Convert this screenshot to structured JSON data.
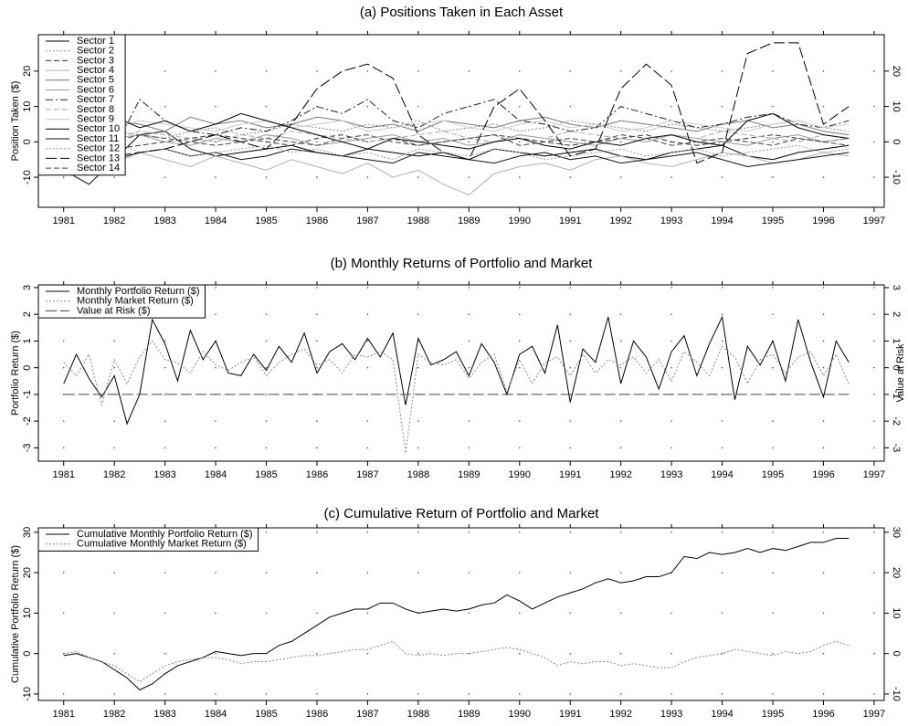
{
  "chart_data": [
    {
      "type": "line",
      "title": "(a) Positions Taken in Each Asset",
      "ylabel": "Position Taken ($)",
      "xlim": [
        1980.5,
        1997.2
      ],
      "xticks": [
        1981,
        1982,
        1983,
        1984,
        1985,
        1986,
        1987,
        1988,
        1989,
        1990,
        1991,
        1992,
        1993,
        1994,
        1995,
        1996,
        1997
      ],
      "ylim": [
        -18.5,
        30.3
      ],
      "yticks": [
        -10,
        0,
        10,
        20
      ],
      "grid": true,
      "legend": "upper left",
      "x": [
        1981,
        1981.5,
        1982,
        1982.5,
        1983,
        1983.5,
        1984,
        1984.5,
        1985,
        1985.5,
        1986,
        1986.5,
        1987,
        1987.5,
        1988,
        1988.5,
        1989,
        1989.5,
        1990,
        1990.5,
        1991,
        1991.5,
        1992,
        1992.5,
        1993,
        1993.5,
        1994,
        1994.5,
        1995,
        1995.5,
        1996,
        1996.5
      ],
      "series": [
        {
          "name": "Sector 1",
          "color": "#000000",
          "linestyle": "solid",
          "values": [
            0,
            -3,
            -5,
            2,
            3,
            -2,
            -4,
            -3,
            -2,
            -1,
            -3,
            -4,
            -2,
            -3,
            -4,
            -3,
            -5,
            -2,
            -3,
            -4,
            -3,
            -2,
            -4,
            -5,
            -3,
            -2,
            -1,
            -4,
            -5,
            -3,
            -2,
            -1
          ]
        },
        {
          "name": "Sector 2",
          "color": "#888888",
          "linestyle": "dotted",
          "values": [
            1,
            2,
            3,
            2,
            1,
            3,
            4,
            2,
            3,
            5,
            4,
            3,
            5,
            4,
            6,
            3,
            4,
            5,
            3,
            4,
            6,
            5,
            4,
            3,
            5,
            4,
            3,
            4,
            5,
            6,
            4,
            3
          ]
        },
        {
          "name": "Sector 3",
          "color": "#333333",
          "linestyle": "dashed",
          "values": [
            0,
            1,
            -2,
            -1,
            0,
            1,
            2,
            1,
            0,
            -1,
            1,
            2,
            0,
            1,
            -1,
            0,
            1,
            2,
            1,
            0,
            -1,
            0,
            1,
            2,
            0,
            -1,
            0,
            1,
            2,
            1,
            0,
            1
          ]
        },
        {
          "name": "Sector 4",
          "color": "#b0b0b0",
          "linestyle": "solid",
          "values": [
            -2,
            -4,
            -6,
            -3,
            -5,
            -7,
            -4,
            -6,
            -8,
            -5,
            -7,
            -9,
            -6,
            -10,
            -8,
            -12,
            -15,
            -9,
            -7,
            -6,
            -8,
            -5,
            -4,
            -6,
            -7,
            -5,
            -3,
            -4,
            -6,
            -5,
            -3,
            -4
          ]
        },
        {
          "name": "Sector 5",
          "color": "#777777",
          "linestyle": "solid",
          "values": [
            2,
            4,
            6,
            5,
            3,
            7,
            5,
            6,
            4,
            5,
            7,
            6,
            4,
            5,
            3,
            6,
            5,
            4,
            6,
            7,
            5,
            4,
            6,
            5,
            4,
            3,
            5,
            6,
            4,
            5,
            3,
            2
          ]
        },
        {
          "name": "Sector 6",
          "color": "#999999",
          "linestyle": "solid",
          "values": [
            0,
            -1,
            1,
            2,
            0,
            -1,
            1,
            0,
            2,
            1,
            -1,
            0,
            1,
            2,
            0,
            1,
            -1,
            0,
            2,
            1,
            0,
            -1,
            1,
            0,
            2,
            1,
            0,
            -1,
            1,
            2,
            0,
            1
          ]
        },
        {
          "name": "Sector 7",
          "color": "#222222",
          "linestyle": "dashdot",
          "values": [
            1,
            3,
            -2,
            12,
            6,
            3,
            2,
            4,
            3,
            6,
            10,
            8,
            12,
            6,
            4,
            8,
            10,
            12,
            6,
            5,
            3,
            4,
            10,
            8,
            6,
            4,
            5,
            7,
            8,
            5,
            4,
            6
          ]
        },
        {
          "name": "Sector 8",
          "color": "#aaaaaa",
          "linestyle": "dashed",
          "values": [
            0,
            2,
            1,
            3,
            2,
            1,
            0,
            2,
            1,
            3,
            2,
            1,
            0,
            1,
            2,
            3,
            1,
            0,
            2,
            1,
            3,
            2,
            1,
            0,
            2,
            1,
            3,
            2,
            1,
            0,
            2,
            1
          ]
        },
        {
          "name": "Sector 9",
          "color": "#cccccc",
          "linestyle": "solid",
          "values": [
            5,
            3,
            4,
            6,
            5,
            4,
            3,
            5,
            6,
            4,
            5,
            6,
            3,
            4,
            5,
            6,
            4,
            3,
            5,
            6,
            4,
            5,
            3,
            4,
            6,
            5,
            4,
            3,
            5,
            6,
            4,
            5
          ]
        },
        {
          "name": "Sector 10",
          "color": "#000000",
          "linestyle": "solid",
          "values": [
            3,
            5,
            7,
            4,
            6,
            3,
            5,
            8,
            6,
            4,
            2,
            0,
            -2,
            1,
            0,
            -1,
            -2,
            0,
            1,
            -1,
            -2,
            0,
            -1,
            1,
            2,
            0,
            -1,
            6,
            8,
            4,
            2,
            1
          ]
        },
        {
          "name": "Sector 11",
          "color": "#111111",
          "linestyle": "solid",
          "values": [
            -8,
            -12,
            -5,
            -3,
            -2,
            -4,
            -3,
            -5,
            -4,
            -2,
            -3,
            -4,
            -5,
            -6,
            -3,
            -4,
            -5,
            -6,
            -4,
            -3,
            -5,
            -4,
            -6,
            -5,
            -4,
            -3,
            -5,
            -7,
            -6,
            -5,
            -4,
            -3
          ]
        },
        {
          "name": "Sector 12",
          "color": "#999999",
          "linestyle": "dotted",
          "values": [
            -1,
            -2,
            0,
            -3,
            -2,
            -4,
            -3,
            -2,
            -1,
            -3,
            -2,
            -4,
            -3,
            -5,
            -2,
            -3,
            -4,
            -2,
            -3,
            -5,
            -4,
            -3,
            -2,
            -4,
            -3,
            -2,
            -4,
            -3,
            -2,
            -1,
            -3,
            -2
          ]
        },
        {
          "name": "Sector 13",
          "color": "#000000",
          "linestyle": "longdash",
          "values": [
            0,
            -2,
            -4,
            -3,
            -2,
            0,
            2,
            0,
            -2,
            5,
            15,
            20,
            22,
            18,
            2,
            -3,
            -5,
            10,
            15,
            6,
            -4,
            -2,
            15,
            22,
            16,
            -6,
            -3,
            25,
            28,
            28,
            5,
            10
          ]
        },
        {
          "name": "Sector 14",
          "color": "#444444",
          "linestyle": "dashed",
          "values": [
            0,
            1,
            0,
            2,
            1,
            0,
            -1,
            0,
            1,
            0,
            -1,
            1,
            2,
            0,
            -1,
            0,
            1,
            2,
            -1,
            0,
            1,
            0,
            2,
            1,
            -1,
            0,
            1,
            0,
            -1,
            1,
            0,
            -1
          ]
        }
      ]
    },
    {
      "type": "line",
      "title": "(b) Monthly Returns of Portfolio and Market",
      "ylabel": "Portfolio Return ($)",
      "y2label": "Value at Risk",
      "xlim": [
        1980.5,
        1997.2
      ],
      "xticks": [
        1981,
        1982,
        1983,
        1984,
        1985,
        1986,
        1987,
        1988,
        1989,
        1990,
        1991,
        1992,
        1993,
        1994,
        1995,
        1996,
        1997
      ],
      "ylim": [
        -3.5,
        3.1
      ],
      "yticks": [
        -3,
        -2,
        -1,
        0,
        1,
        2,
        3
      ],
      "grid": true,
      "legend": "upper left",
      "x": [
        1981,
        1981.25,
        1981.5,
        1981.75,
        1982,
        1982.25,
        1982.5,
        1982.75,
        1983,
        1983.25,
        1983.5,
        1983.75,
        1984,
        1984.25,
        1984.5,
        1984.75,
        1985,
        1985.25,
        1985.5,
        1985.75,
        1986,
        1986.25,
        1986.5,
        1986.75,
        1987,
        1987.25,
        1987.5,
        1987.75,
        1988,
        1988.25,
        1988.5,
        1988.75,
        1989,
        1989.25,
        1989.5,
        1989.75,
        1990,
        1990.25,
        1990.5,
        1990.75,
        1991,
        1991.25,
        1991.5,
        1991.75,
        1992,
        1992.25,
        1992.5,
        1992.75,
        1993,
        1993.25,
        1993.5,
        1993.75,
        1994,
        1994.25,
        1994.5,
        1994.75,
        1995,
        1995.25,
        1995.5,
        1995.75,
        1996,
        1996.25,
        1996.5
      ],
      "series": [
        {
          "name": "Monthly Portfolio Return ($)",
          "color": "#000000",
          "linestyle": "solid",
          "values": [
            -0.6,
            0.5,
            -0.4,
            -1.1,
            -0.3,
            -2.1,
            -1.0,
            1.8,
            0.9,
            -0.5,
            1.4,
            0.3,
            1.0,
            -0.2,
            -0.3,
            0.5,
            -0.1,
            0.8,
            0.2,
            1.3,
            -0.2,
            0.6,
            0.9,
            0.3,
            1.1,
            0.4,
            1.3,
            -1.4,
            1.1,
            0.1,
            0.3,
            0.6,
            -0.3,
            0.9,
            0.2,
            -1.0,
            0.5,
            0.8,
            -0.2,
            1.6,
            -1.3,
            0.7,
            0.2,
            1.9,
            -0.6,
            1.0,
            0.4,
            -0.8,
            0.6,
            1.2,
            -0.3,
            0.9,
            1.9,
            -1.2,
            0.8,
            0.1,
            1.0,
            -0.5,
            1.8,
            0.2,
            -1.1,
            1.0,
            0.2
          ]
        },
        {
          "name": "Monthly Market Return ($)",
          "color": "#888888",
          "linestyle": "dotted",
          "values": [
            0.2,
            -0.3,
            0.5,
            -1.4,
            0.3,
            -0.6,
            0.4,
            1.0,
            0.3,
            0.2,
            -0.2,
            0.6,
            0.1,
            -0.1,
            0.2,
            0.4,
            -0.3,
            0.2,
            0.5,
            0.7,
            0.1,
            0.3,
            -0.2,
            0.5,
            0.4,
            0.6,
            0.3,
            -3.2,
            0.5,
            0.2,
            0.1,
            0.3,
            -0.4,
            0.2,
            0.5,
            -0.9,
            0.3,
            -0.6,
            0.2,
            0.4,
            -0.3,
            0.5,
            -0.2,
            0.3,
            0.1,
            0.4,
            -0.2,
            0.3,
            -0.5,
            0.6,
            0.2,
            -0.3,
            0.8,
            0.4,
            -0.6,
            0.3,
            0.5,
            -0.2,
            0.4,
            0.6,
            -0.3,
            0.5,
            -0.6
          ]
        },
        {
          "name": "Value at Risk ($)",
          "color": "#444444",
          "linestyle": "longdash",
          "axis": "y2",
          "values": [
            -1,
            -1,
            -1,
            -1,
            -1,
            -1,
            -1,
            -1,
            -1,
            -1,
            -1,
            -1,
            -1,
            -1,
            -1,
            -1,
            -1,
            -1,
            -1,
            -1,
            -1,
            -1,
            -1,
            -1,
            -1,
            -1,
            -1,
            -1,
            -1,
            -1,
            -1,
            -1,
            -1,
            -1,
            -1,
            -1,
            -1,
            -1,
            -1,
            -1,
            -1,
            -1,
            -1,
            -1,
            -1,
            -1,
            -1,
            -1,
            -1,
            -1,
            -1,
            -1,
            -1,
            -1,
            -1,
            -1,
            -1,
            -1,
            -1,
            -1,
            -1,
            -1,
            -1
          ]
        }
      ]
    },
    {
      "type": "line",
      "title": "(c) Cumulative Return of Portfolio and Market",
      "ylabel": "Cumulative Portfolio Return ($)",
      "xlim": [
        1980.5,
        1997.2
      ],
      "xticks": [
        1981,
        1982,
        1983,
        1984,
        1985,
        1986,
        1987,
        1988,
        1989,
        1990,
        1991,
        1992,
        1993,
        1994,
        1995,
        1996,
        1997
      ],
      "ylim": [
        -11.6,
        31.1
      ],
      "yticks": [
        -10,
        0,
        10,
        20,
        30
      ],
      "grid": true,
      "legend": "upper left",
      "x": [
        1981,
        1981.25,
        1981.5,
        1981.75,
        1982,
        1982.25,
        1982.5,
        1982.75,
        1983,
        1983.25,
        1983.5,
        1983.75,
        1984,
        1984.25,
        1984.5,
        1984.75,
        1985,
        1985.25,
        1985.5,
        1985.75,
        1986,
        1986.25,
        1986.5,
        1986.75,
        1987,
        1987.25,
        1987.5,
        1987.75,
        1988,
        1988.25,
        1988.5,
        1988.75,
        1989,
        1989.25,
        1989.5,
        1989.75,
        1990,
        1990.25,
        1990.5,
        1990.75,
        1991,
        1991.25,
        1991.5,
        1991.75,
        1992,
        1992.25,
        1992.5,
        1992.75,
        1993,
        1993.25,
        1993.5,
        1993.75,
        1994,
        1994.25,
        1994.5,
        1994.75,
        1995,
        1995.25,
        1995.5,
        1995.75,
        1996,
        1996.25,
        1996.5
      ],
      "series": [
        {
          "name": "Cumulative Monthly Portfolio Return ($)",
          "color": "#000000",
          "linestyle": "solid",
          "values": [
            -0.5,
            0,
            -1,
            -2,
            -4,
            -6,
            -9,
            -7.5,
            -5,
            -3,
            -2,
            -1,
            0.5,
            0,
            -0.5,
            0,
            0,
            2,
            3,
            5,
            7,
            9,
            10,
            11,
            11,
            12.5,
            12.5,
            11,
            10,
            10.5,
            11,
            10.5,
            11,
            12,
            12.5,
            14.5,
            13,
            11,
            12.5,
            14,
            15,
            16,
            17.5,
            18.5,
            17.5,
            18,
            19,
            19,
            20,
            24,
            23.5,
            25,
            24.5,
            25,
            26,
            25,
            26,
            25.5,
            26.5,
            27.5,
            27.5,
            28.5,
            28.5
          ]
        },
        {
          "name": "Cumulative Monthly Market Return ($)",
          "color": "#888888",
          "linestyle": "dotted",
          "values": [
            0,
            0.5,
            -1,
            -2,
            -3,
            -5,
            -7,
            -5,
            -3,
            -2,
            -1.5,
            -1,
            -1,
            -1.5,
            -2.5,
            -2,
            -2,
            -1.5,
            -1,
            -0.5,
            -0.5,
            0,
            0.5,
            1,
            1,
            2,
            3,
            0,
            -0.5,
            0,
            -0.5,
            0,
            0,
            0.5,
            1,
            1.5,
            1,
            0,
            -1,
            -3,
            -2,
            -2.5,
            -2,
            -2,
            -3,
            -2.5,
            -3,
            -3.5,
            -3.5,
            -2,
            -1,
            -0.5,
            0,
            1,
            0.5,
            0,
            -0.5,
            0.5,
            0,
            0.5,
            2,
            3,
            2
          ]
        }
      ]
    }
  ]
}
